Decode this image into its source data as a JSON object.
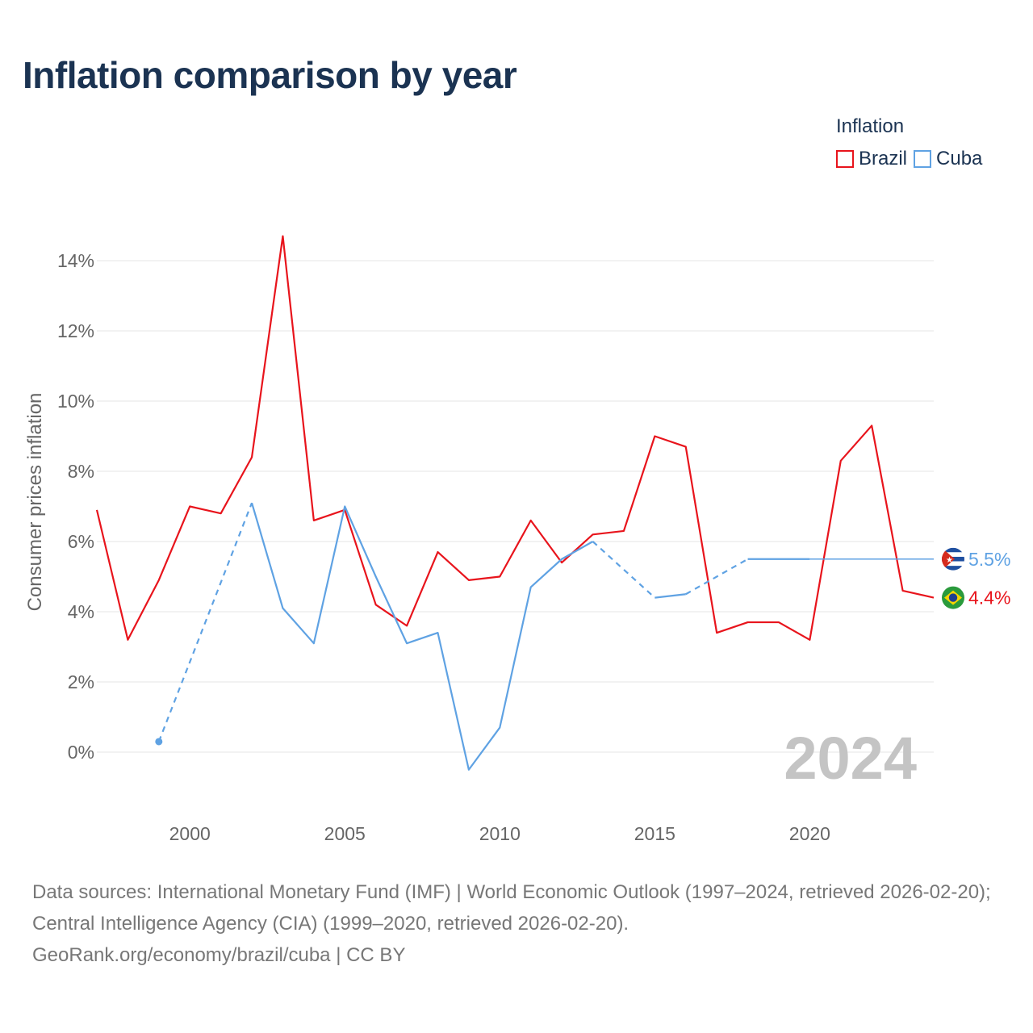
{
  "title": "Inflation comparison by year",
  "legend": {
    "title": "Inflation",
    "items": [
      {
        "label": "Brazil",
        "color": "#e8141c"
      },
      {
        "label": "Cuba",
        "color": "#5fa2e3"
      }
    ]
  },
  "colors": {
    "brazil": "#e8141c",
    "cuba": "#5fa2e3",
    "grid": "#e6e6e6",
    "axis_text": "#666666",
    "watermark": "#c4c4c4"
  },
  "year_watermark": "2024",
  "chart_data": {
    "type": "line",
    "title": "Inflation comparison by year",
    "xlabel": "",
    "ylabel": "Consumer prices inflation",
    "x_ticks": [
      "2000",
      "2005",
      "2010",
      "2015",
      "2020"
    ],
    "y_ticks": [
      "0%",
      "2%",
      "4%",
      "6%",
      "8%",
      "10%",
      "12%",
      "14%"
    ],
    "xlim": [
      1997,
      2024
    ],
    "ylim": [
      -1.8,
      15.5
    ],
    "grid": true,
    "legend_position": "top-right",
    "series": [
      {
        "name": "Brazil",
        "color": "#e8141c",
        "end_label": "4.4%",
        "flag": "brazil-flag",
        "points": [
          [
            1997,
            6.9
          ],
          [
            1998,
            3.2
          ],
          [
            1999,
            4.9
          ],
          [
            2000,
            7.0
          ],
          [
            2001,
            6.8
          ],
          [
            2002,
            8.4
          ],
          [
            2003,
            14.7
          ],
          [
            2004,
            6.6
          ],
          [
            2005,
            6.9
          ],
          [
            2006,
            4.2
          ],
          [
            2007,
            3.6
          ],
          [
            2008,
            5.7
          ],
          [
            2009,
            4.9
          ],
          [
            2010,
            5.0
          ],
          [
            2011,
            6.6
          ],
          [
            2012,
            5.4
          ],
          [
            2013,
            6.2
          ],
          [
            2014,
            6.3
          ],
          [
            2015,
            9.0
          ],
          [
            2016,
            8.7
          ],
          [
            2017,
            3.4
          ],
          [
            2018,
            3.7
          ],
          [
            2019,
            3.7
          ],
          [
            2020,
            3.2
          ],
          [
            2021,
            8.3
          ],
          [
            2022,
            9.3
          ],
          [
            2023,
            4.6
          ],
          [
            2024,
            4.4
          ]
        ]
      },
      {
        "name": "Cuba",
        "color": "#5fa2e3",
        "end_label": "5.5%",
        "flag": "cuba-flag",
        "points": [
          [
            1999,
            0.3
          ],
          [
            2002,
            7.1
          ],
          [
            2003,
            4.1
          ],
          [
            2004,
            3.1
          ],
          [
            2005,
            7.0
          ],
          [
            2006,
            5.0
          ],
          [
            2007,
            3.1
          ],
          [
            2008,
            3.4
          ],
          [
            2009,
            -0.5
          ],
          [
            2010,
            0.7
          ],
          [
            2011,
            4.7
          ],
          [
            2012,
            5.5
          ],
          [
            2013,
            6.0
          ],
          [
            2015,
            4.4
          ],
          [
            2016,
            4.5
          ],
          [
            2018,
            5.5
          ],
          [
            2019,
            5.5
          ],
          [
            2020,
            5.5
          ]
        ],
        "dashed_segments": [
          [
            1999,
            2002
          ],
          [
            2013,
            2015
          ],
          [
            2016,
            2018
          ]
        ],
        "extrapolated_to": 2024
      }
    ]
  },
  "footer": {
    "sources": "Data sources: International Monetary Fund (IMF) | World Economic Outlook (1997–2024, retrieved 2026-02-20); Central Intelligence Agency (CIA) (1999–2020, retrieved 2026-02-20).",
    "credit": "GeoRank.org/economy/brazil/cuba | CC BY"
  }
}
